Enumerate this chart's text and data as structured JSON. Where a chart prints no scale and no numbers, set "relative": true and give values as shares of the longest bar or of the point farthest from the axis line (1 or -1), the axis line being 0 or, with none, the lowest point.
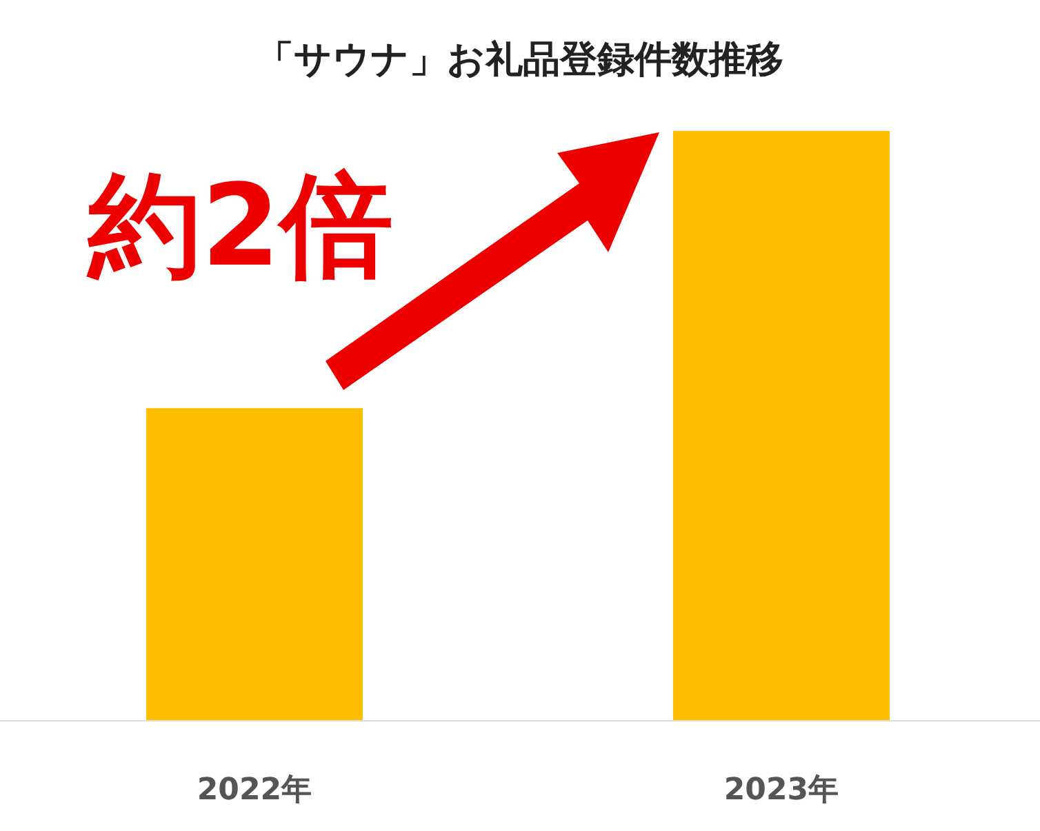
{
  "chart_data": {
    "type": "bar",
    "title": "「サウナ」お礼品登録件数推移",
    "categories": [
      "2022年",
      "2023年"
    ],
    "values": [
      0.53,
      1
    ],
    "color": "#ffbf00",
    "relative": true,
    "annotations": [
      "約2倍"
    ]
  }
}
